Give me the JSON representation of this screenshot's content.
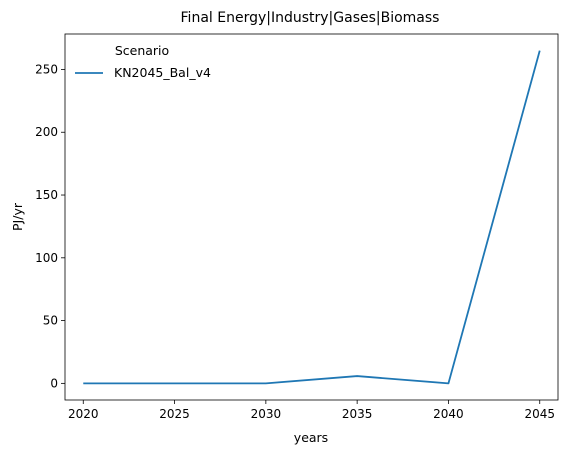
{
  "chart_data": {
    "type": "line",
    "title": "Final Energy|Industry|Gases|Biomass",
    "xlabel": "years",
    "ylabel": "PJ/yr",
    "x": [
      2020,
      2025,
      2030,
      2035,
      2040,
      2045
    ],
    "series": [
      {
        "name": "KN2045_Bal_v4",
        "color": "#1f77b4",
        "values": [
          0.0,
          0.0,
          0.0,
          5.8,
          0.0,
          265.0
        ]
      }
    ],
    "xlim": [
      2019.0,
      2046.0
    ],
    "ylim": [
      -13.25,
      278.25
    ],
    "xticks": [
      2020,
      2025,
      2030,
      2035,
      2040,
      2045
    ],
    "yticks": [
      0,
      50,
      100,
      150,
      200,
      250
    ],
    "legend": {
      "title": "Scenario",
      "position": "top-left"
    },
    "grid": false
  }
}
